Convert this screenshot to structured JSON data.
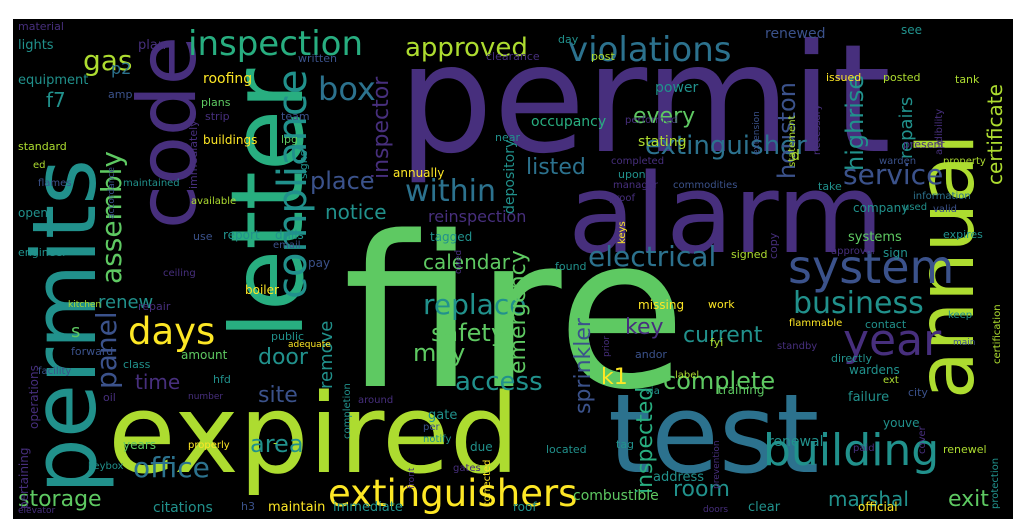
{
  "palette": {
    "background": "#000000",
    "page": "#ffffff",
    "colors": [
      "#440154",
      "#472f7d",
      "#3b528b",
      "#2c728e",
      "#21918c",
      "#28ae80",
      "#5ec962",
      "#addc30",
      "#fde725"
    ]
  },
  "words": [
    {
      "text": "fire"
    },
    {
      "text": "permit"
    },
    {
      "text": "expired"
    },
    {
      "text": "test"
    },
    {
      "text": "alarm"
    },
    {
      "text": "letter"
    },
    {
      "text": "code"
    },
    {
      "text": "permits"
    },
    {
      "text": "annual"
    },
    {
      "text": "system"
    },
    {
      "text": "building"
    },
    {
      "text": "extinguishers"
    },
    {
      "text": "compliance"
    },
    {
      "text": "days"
    },
    {
      "text": "violations"
    },
    {
      "text": "inspection"
    },
    {
      "text": "year"
    },
    {
      "text": "business"
    },
    {
      "text": "within"
    },
    {
      "text": "electrical"
    },
    {
      "text": "extinguisher"
    },
    {
      "text": "service"
    },
    {
      "text": "office"
    },
    {
      "text": "box"
    },
    {
      "text": "approved"
    },
    {
      "text": "storage"
    },
    {
      "text": "gas"
    },
    {
      "text": "assembly"
    },
    {
      "text": "panel"
    },
    {
      "text": "replace"
    },
    {
      "text": "access"
    },
    {
      "text": "complete"
    },
    {
      "text": "safety"
    },
    {
      "text": "place"
    },
    {
      "text": "houston"
    },
    {
      "text": "inspector"
    },
    {
      "text": "emergency"
    },
    {
      "text": "listed"
    },
    {
      "text": "remove"
    },
    {
      "text": "notice"
    },
    {
      "text": "calendar"
    },
    {
      "text": "room"
    },
    {
      "text": "current"
    },
    {
      "text": "may"
    },
    {
      "text": "key"
    },
    {
      "text": "repairs"
    },
    {
      "text": "highrise"
    },
    {
      "text": "certificate"
    },
    {
      "text": "sprinkler"
    },
    {
      "text": "inspected"
    },
    {
      "text": "renew"
    },
    {
      "text": "door"
    },
    {
      "text": "site"
    },
    {
      "text": "time"
    },
    {
      "text": "area"
    },
    {
      "text": "exit"
    },
    {
      "text": "every"
    },
    {
      "text": "marshal"
    },
    {
      "text": "k1"
    },
    {
      "text": "f7"
    },
    {
      "text": "p2"
    },
    {
      "text": "s"
    },
    {
      "text": "d"
    },
    {
      "text": "reinspection"
    },
    {
      "text": "occupancy"
    },
    {
      "text": "depository"
    },
    {
      "text": "stating"
    },
    {
      "text": "power"
    },
    {
      "text": "renewed"
    },
    {
      "text": "roofing"
    },
    {
      "text": "lights"
    },
    {
      "text": "equipment"
    },
    {
      "text": "plan"
    },
    {
      "text": "material"
    },
    {
      "text": "day"
    },
    {
      "text": "written"
    },
    {
      "text": "clearance"
    },
    {
      "text": "post"
    },
    {
      "text": "issued"
    },
    {
      "text": "posted"
    },
    {
      "text": "see"
    },
    {
      "text": "tank"
    },
    {
      "text": "amp"
    },
    {
      "text": "plans"
    },
    {
      "text": "strip"
    },
    {
      "text": "immediately"
    },
    {
      "text": "performed"
    },
    {
      "text": "extension"
    },
    {
      "text": "necessary"
    },
    {
      "text": "audibility"
    },
    {
      "text": "team"
    },
    {
      "text": "buildings"
    },
    {
      "text": "lpg"
    },
    {
      "text": "near"
    },
    {
      "text": "present"
    },
    {
      "text": "statement"
    },
    {
      "text": "standard"
    },
    {
      "text": "ed"
    },
    {
      "text": "signs"
    },
    {
      "text": "completed"
    },
    {
      "text": "upon"
    },
    {
      "text": "warden"
    },
    {
      "text": "property"
    },
    {
      "text": "maintained"
    },
    {
      "text": "accordance"
    },
    {
      "text": "manager"
    },
    {
      "text": "commodities"
    },
    {
      "text": "take"
    },
    {
      "text": "flames"
    },
    {
      "text": "available"
    },
    {
      "text": "proof"
    },
    {
      "text": "company"
    },
    {
      "text": "information"
    },
    {
      "text": "used"
    },
    {
      "text": "valid"
    },
    {
      "text": "open"
    },
    {
      "text": "annually"
    },
    {
      "text": "use"
    },
    {
      "text": "report"
    },
    {
      "text": "drills"
    },
    {
      "text": "tagged"
    },
    {
      "text": "keys"
    },
    {
      "text": "copy"
    },
    {
      "text": "systems"
    },
    {
      "text": "expires"
    },
    {
      "text": "engineer"
    },
    {
      "text": "email"
    },
    {
      "text": "ceiling"
    },
    {
      "text": "pay"
    },
    {
      "text": "signed"
    },
    {
      "text": "approval"
    },
    {
      "text": "sign"
    },
    {
      "text": "certification"
    },
    {
      "text": "found"
    },
    {
      "text": "boiler"
    },
    {
      "text": "owed"
    },
    {
      "text": "kitchen"
    },
    {
      "text": "repair"
    },
    {
      "text": "missing"
    },
    {
      "text": "work"
    },
    {
      "text": "flammable"
    },
    {
      "text": "contact"
    },
    {
      "text": "keep"
    },
    {
      "text": "public"
    },
    {
      "text": "prior"
    },
    {
      "text": "fyi"
    },
    {
      "text": "main"
    },
    {
      "text": "operations"
    },
    {
      "text": "forward"
    },
    {
      "text": "adequate"
    },
    {
      "text": "completion"
    },
    {
      "text": "andor"
    },
    {
      "text": "standby"
    },
    {
      "text": "directly"
    },
    {
      "text": "facility"
    },
    {
      "text": "class"
    },
    {
      "text": "amount"
    },
    {
      "text": "hfd"
    },
    {
      "text": "gate"
    },
    {
      "text": "wardens"
    },
    {
      "text": "label"
    },
    {
      "text": "city"
    },
    {
      "text": "oil"
    },
    {
      "text": "number"
    },
    {
      "text": "around"
    },
    {
      "text": "via"
    },
    {
      "text": "failure"
    },
    {
      "text": "ext"
    },
    {
      "text": "pertaining"
    },
    {
      "text": "training"
    },
    {
      "text": "youve"
    },
    {
      "text": "cover"
    },
    {
      "text": "keybox"
    },
    {
      "text": "properly"
    },
    {
      "text": "-"
    },
    {
      "text": "per"
    },
    {
      "text": "notify"
    },
    {
      "text": "front"
    },
    {
      "text": "renewal"
    },
    {
      "text": "prevention"
    },
    {
      "text": "paid"
    },
    {
      "text": "renewel"
    },
    {
      "text": "protection"
    },
    {
      "text": "years"
    },
    {
      "text": "due"
    },
    {
      "text": "corrected"
    },
    {
      "text": "located"
    },
    {
      "text": "tag"
    },
    {
      "text": "gates"
    },
    {
      "text": "address"
    },
    {
      "text": "elevator"
    },
    {
      "text": "citations"
    },
    {
      "text": "h3"
    },
    {
      "text": "maintain"
    },
    {
      "text": "immediate"
    },
    {
      "text": "roof"
    },
    {
      "text": "combustible"
    },
    {
      "text": "doors"
    },
    {
      "text": "clear"
    },
    {
      "text": "official"
    }
  ]
}
